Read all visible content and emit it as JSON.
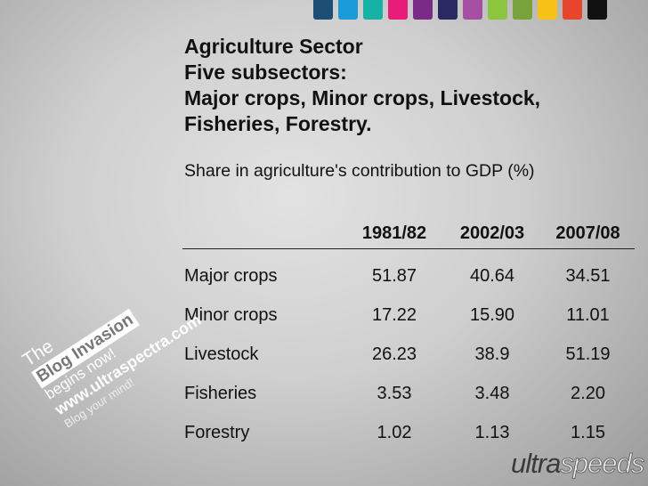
{
  "swatch_colors": [
    "#1d4e73",
    "#1a9ad7",
    "#16b2a8",
    "#e81d7a",
    "#7a2a88",
    "#2a2a62",
    "#a64ea2",
    "#8cc63f",
    "#78a33a",
    "#f6c215",
    "#e8452d",
    "#111111"
  ],
  "title_lines": [
    "Agriculture Sector",
    "Five subsectors:",
    "Major crops, Minor crops, Livestock,",
    "Fisheries, Forestry."
  ],
  "subtitle": "Share in agriculture's contribution to GDP (%)",
  "table": {
    "headers": [
      "",
      "1981/82",
      "2002/03",
      "2007/08"
    ],
    "rows": [
      {
        "label": "Major crops",
        "values": [
          "51.87",
          "40.64",
          "34.51"
        ]
      },
      {
        "label": "Minor crops",
        "values": [
          "17.22",
          "15.90",
          "11.01"
        ]
      },
      {
        "label": "Livestock",
        "values": [
          "26.23",
          "38.9",
          "51.19"
        ]
      },
      {
        "label": "Fisheries",
        "values": [
          "3.53",
          "3.48",
          "2.20"
        ]
      },
      {
        "label": "Forestry",
        "values": [
          "1.02",
          "1.13",
          "1.15"
        ]
      }
    ]
  },
  "stamp": {
    "line1": "The",
    "line2": "Blog Invasion",
    "line3": "begins now!",
    "line4": "www.ultraspectra.com",
    "line5": "Blog your mind!"
  },
  "logo": {
    "part1": "ultra",
    "part2": "speeds"
  }
}
